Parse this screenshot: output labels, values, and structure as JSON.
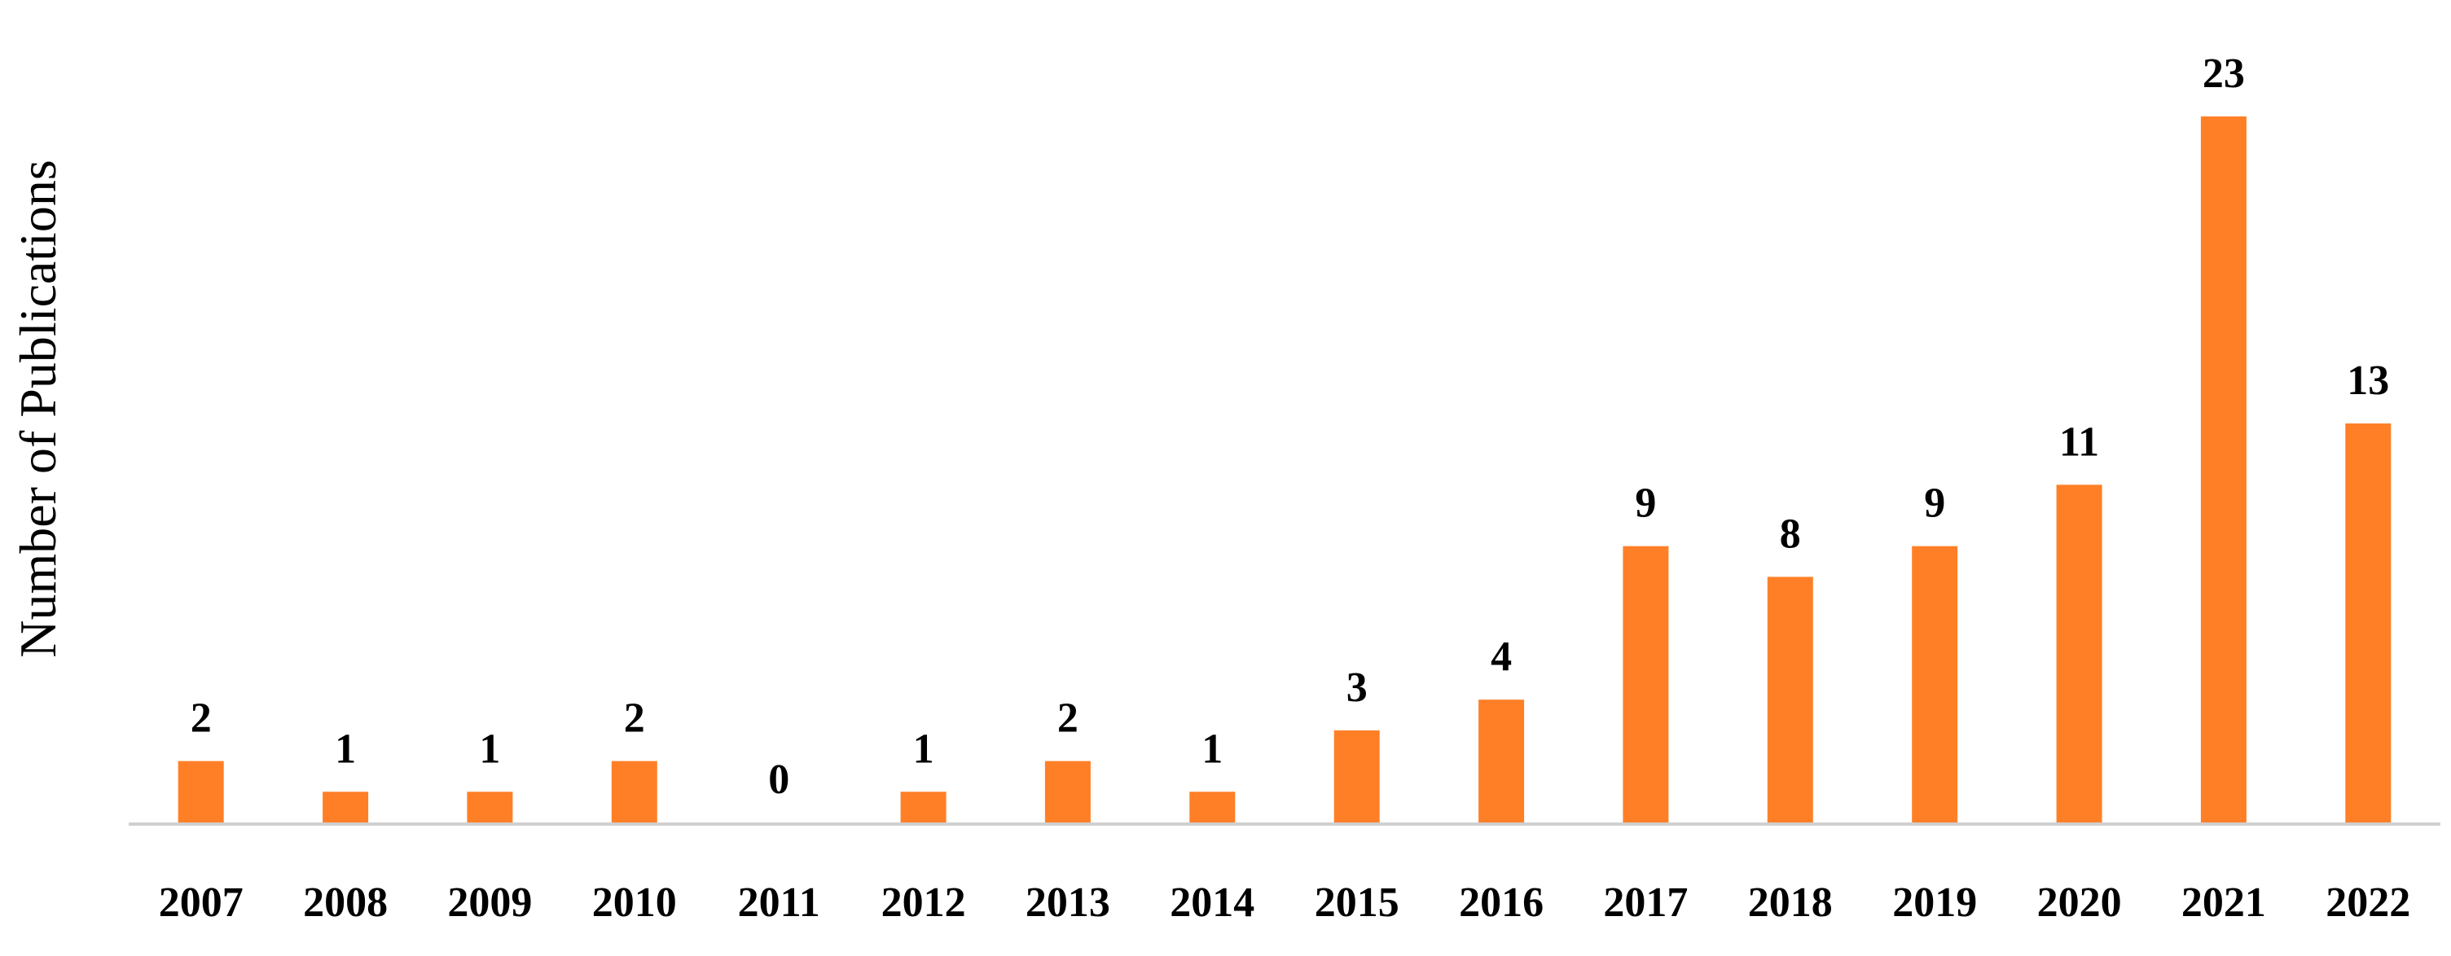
{
  "chart_data": {
    "type": "bar",
    "title": "",
    "xlabel": "",
    "ylabel": "Number of Publications",
    "categories": [
      "2007",
      "2008",
      "2009",
      "2010",
      "2011",
      "2012",
      "2013",
      "2014",
      "2015",
      "2016",
      "2017",
      "2018",
      "2019",
      "2020",
      "2021",
      "2022"
    ],
    "values": [
      2,
      1,
      1,
      2,
      0,
      1,
      2,
      1,
      3,
      4,
      9,
      8,
      9,
      11,
      23,
      13
    ],
    "data_labels": [
      "2",
      "1",
      "1",
      "2",
      "0",
      "1",
      "2",
      "1",
      "3",
      "4",
      "9",
      "8",
      "9",
      "11",
      "23",
      "13"
    ],
    "ylim": [
      0,
      23
    ],
    "grid": false,
    "legend": "none",
    "colors": {
      "bar": "#FF7F27",
      "axis": "#D0D0D0",
      "text": "#000000"
    }
  }
}
